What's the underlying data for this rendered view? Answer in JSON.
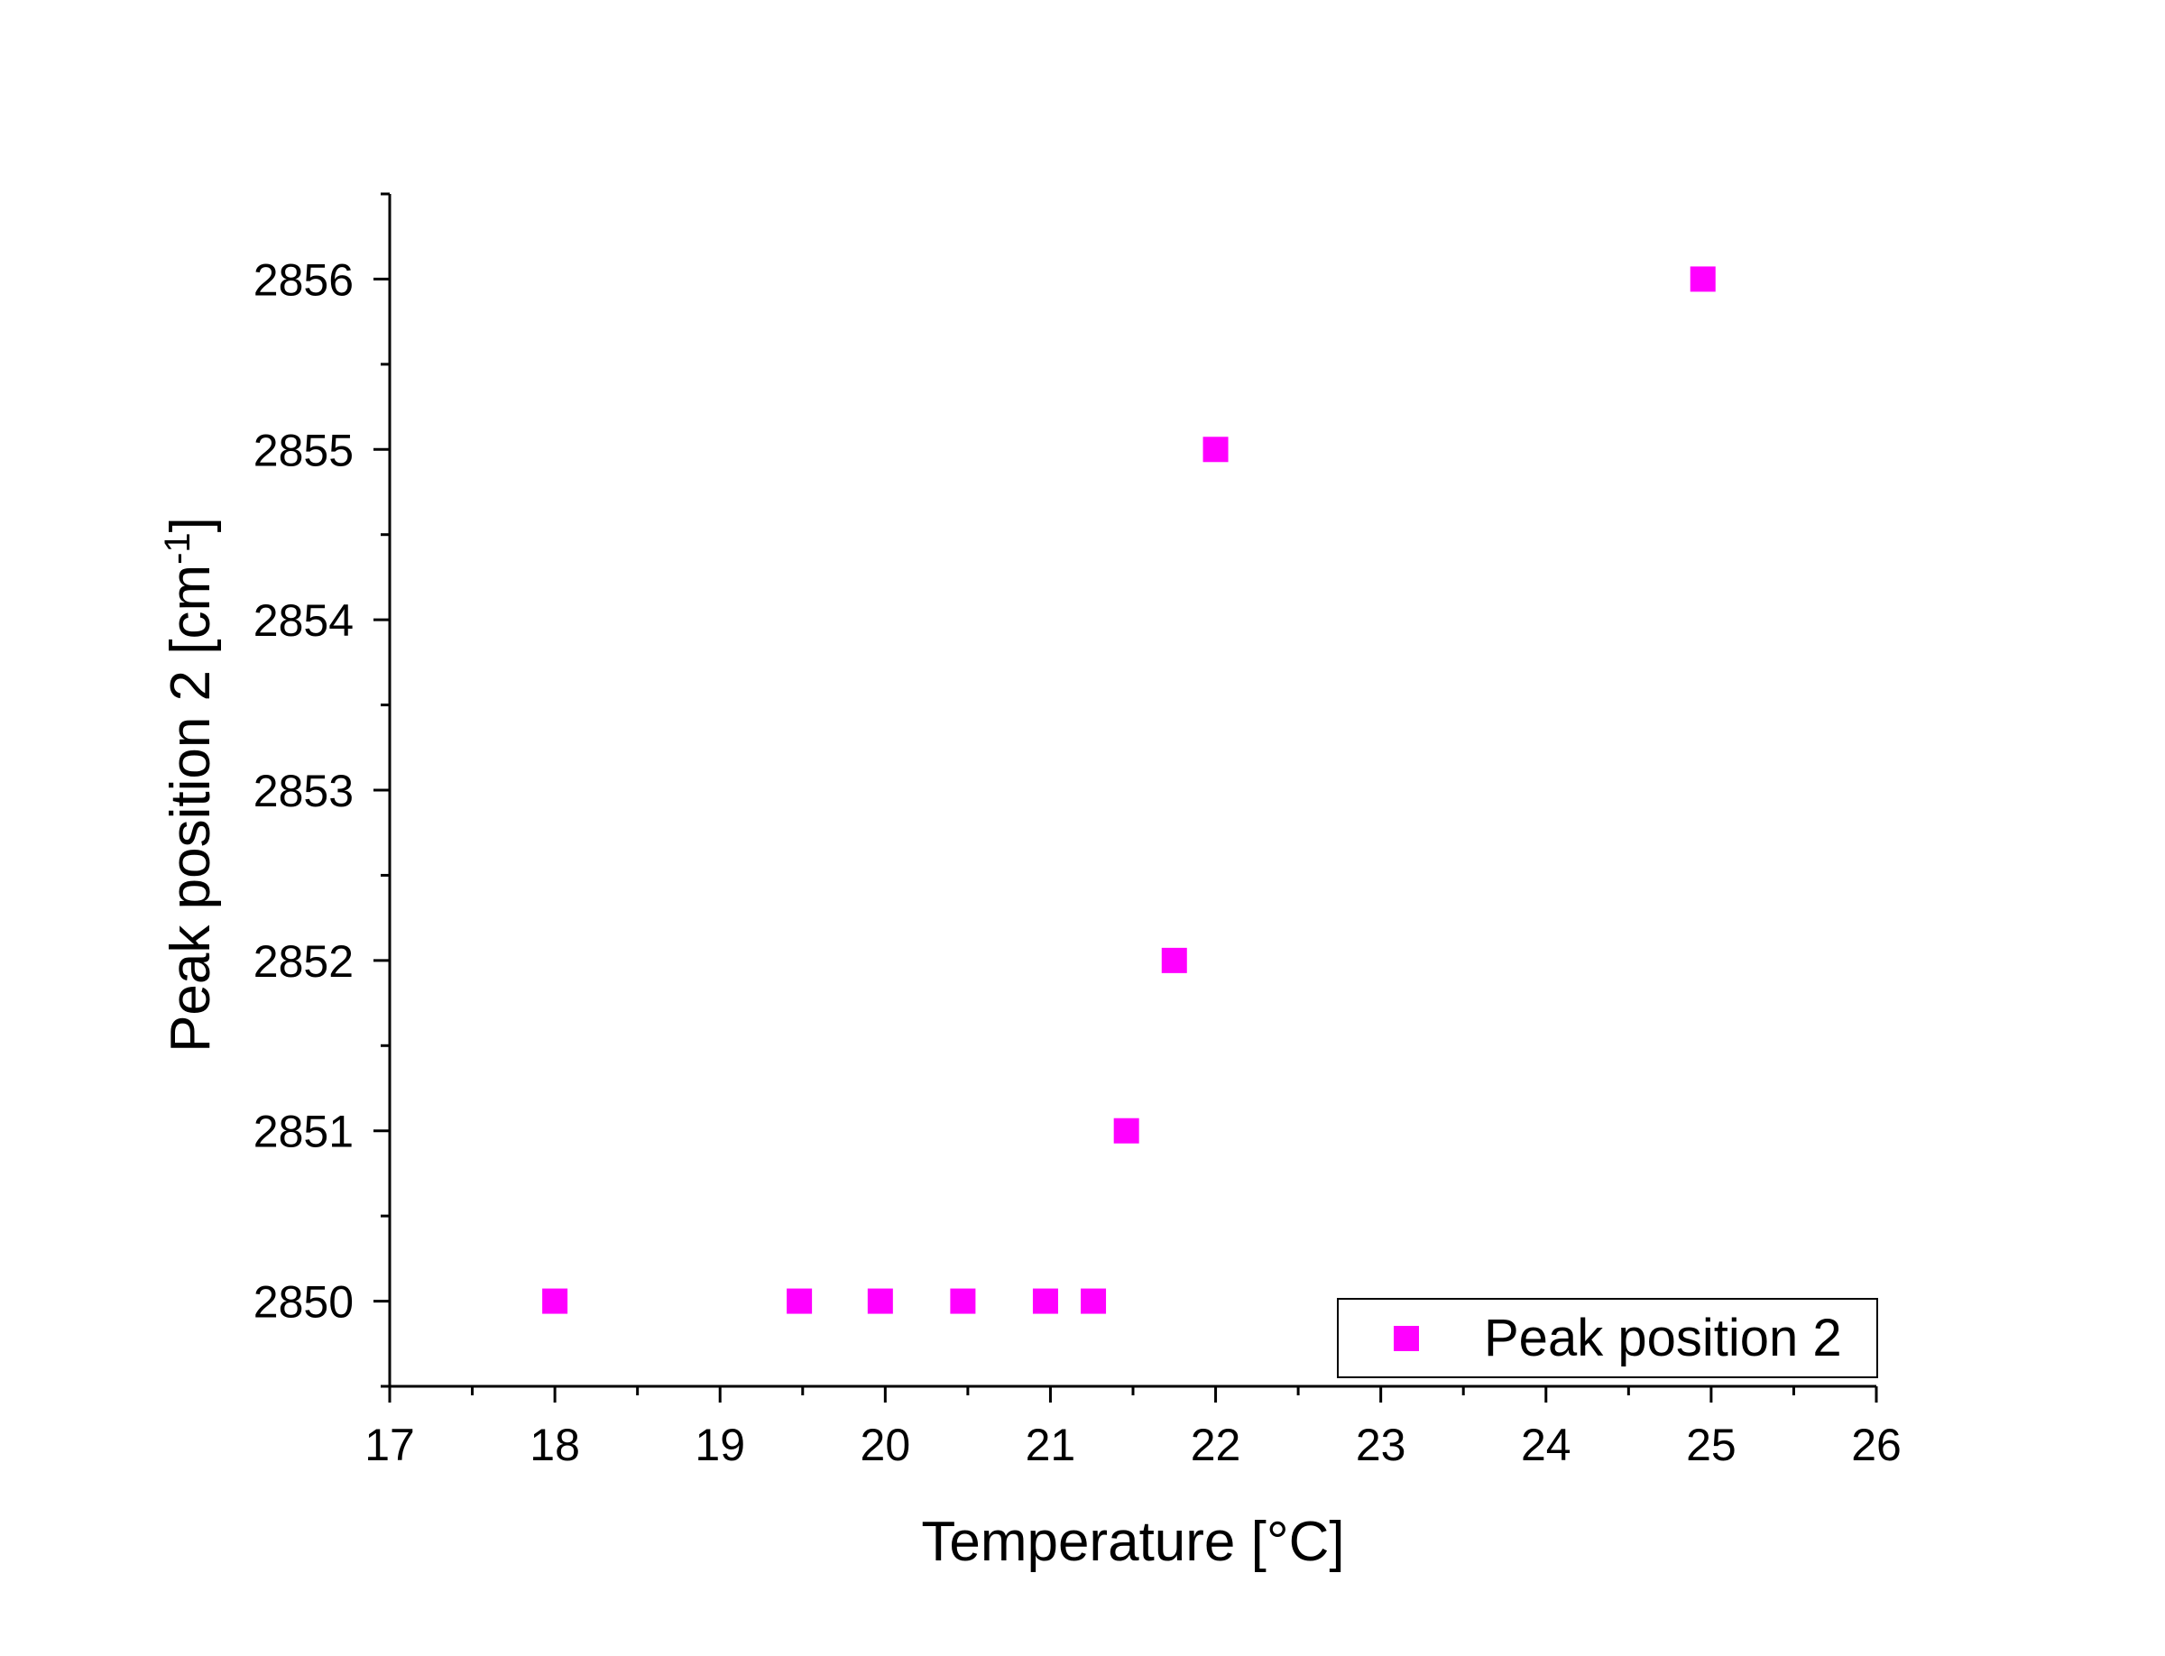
{
  "chart_data": {
    "type": "scatter",
    "title": "",
    "xlabel": "Temperature [°C]",
    "ylabel": {
      "main": "Peak position 2 [cm",
      "superscript": "-1",
      "suffix": "]"
    },
    "xlim": [
      17,
      26
    ],
    "ylim": [
      2849.5,
      2856.5
    ],
    "x_ticks": [
      17,
      18,
      19,
      20,
      21,
      22,
      23,
      24,
      25,
      26
    ],
    "y_ticks": [
      2850,
      2851,
      2852,
      2853,
      2854,
      2855,
      2856
    ],
    "grid": false,
    "legend": {
      "position": "bottom-right",
      "entries": [
        "Peak position 2"
      ]
    },
    "series": [
      {
        "name": "Peak position 2",
        "color": "#FF00FF",
        "marker": "square",
        "x": [
          18.0,
          19.48,
          19.97,
          20.47,
          20.97,
          21.26,
          21.46,
          21.75,
          22.0,
          24.95
        ],
        "y": [
          2850,
          2850,
          2850,
          2850,
          2850,
          2850,
          2851,
          2852,
          2855,
          2856
        ]
      }
    ]
  }
}
